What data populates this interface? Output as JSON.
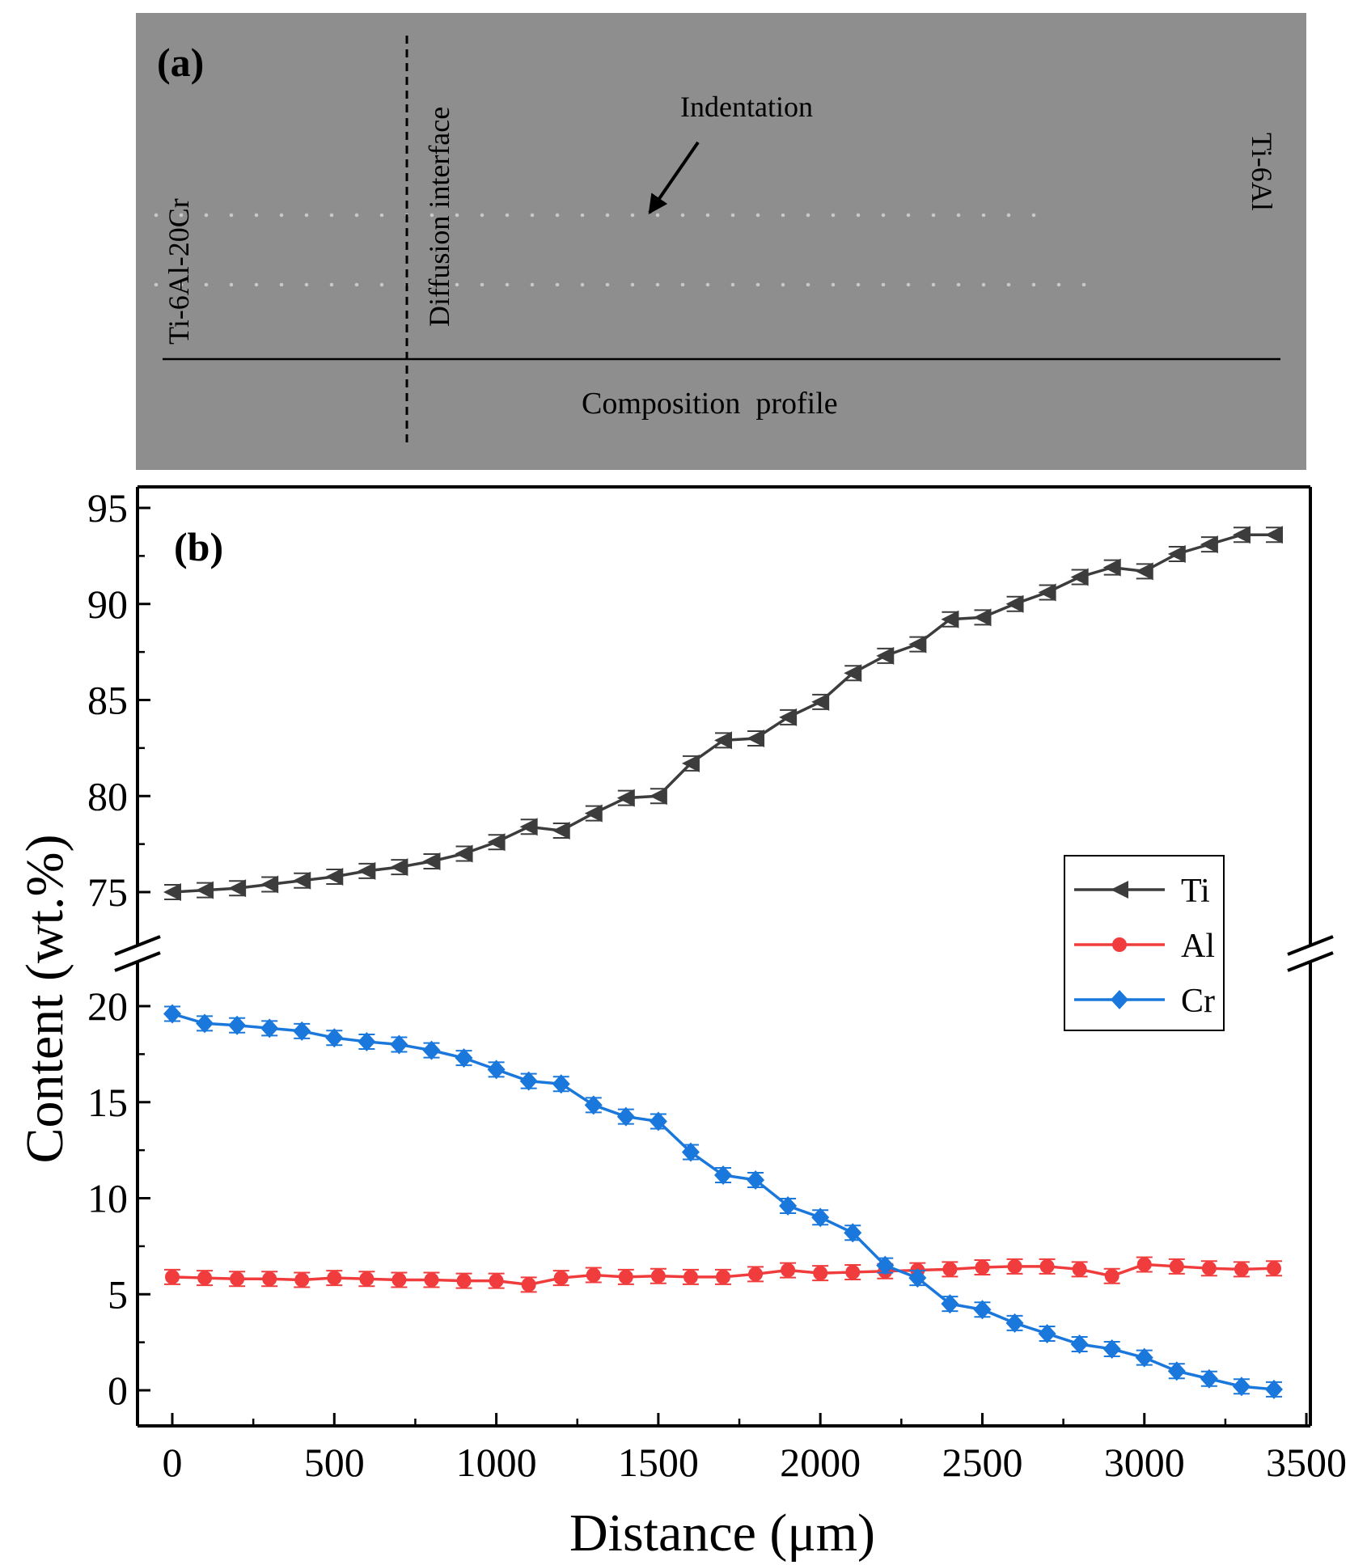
{
  "panel_a": {
    "panel_label": "(a)",
    "left_material": "Ti-6Al-20Cr",
    "right_material": "Ti-6Al",
    "interface_label": "Diffusion interface",
    "indentation_label": "Indentation",
    "profile_label": "Composition  profile",
    "colors": {
      "background": "#8e8e8e",
      "line": "#000000"
    }
  },
  "chart_data": {
    "type": "line",
    "panel_label": "(b)",
    "xlabel": "Distance (μm)",
    "ylabel": "Content (wt.%)",
    "xlim": [
      -100,
      3500
    ],
    "x_ticks": [
      "0",
      "500",
      "1000",
      "1500",
      "2000",
      "2500",
      "3000",
      "3500"
    ],
    "y_broken_axis": true,
    "y_upper_range": [
      72.5,
      95
    ],
    "y_upper_ticks": [
      "75",
      "80",
      "85",
      "90",
      "95"
    ],
    "y_lower_range": [
      -1,
      22
    ],
    "y_lower_ticks": [
      "0",
      "5",
      "10",
      "15",
      "20"
    ],
    "x": [
      0,
      100,
      200,
      300,
      400,
      500,
      600,
      700,
      800,
      900,
      1000,
      1100,
      1200,
      1300,
      1400,
      1500,
      1600,
      1700,
      1800,
      1900,
      2000,
      2100,
      2200,
      2300,
      2400,
      2500,
      2600,
      2700,
      2800,
      2900,
      3000,
      3100,
      3200,
      3300,
      3400
    ],
    "legend_position": "right",
    "series": [
      {
        "name": "Ti",
        "color": "#3c3c3c",
        "marker": "left-triangle",
        "axis": "upper",
        "values": [
          75.0,
          75.1,
          75.2,
          75.4,
          75.6,
          75.8,
          76.1,
          76.3,
          76.6,
          77.0,
          77.6,
          78.4,
          78.2,
          79.1,
          79.9,
          80.0,
          81.7,
          82.9,
          83.0,
          84.1,
          84.9,
          86.4,
          87.3,
          87.9,
          89.2,
          89.3,
          90.0,
          90.6,
          91.4,
          91.9,
          91.7,
          92.6,
          93.1,
          93.6,
          93.6
        ]
      },
      {
        "name": "Al",
        "color": "#f03c3c",
        "marker": "circle",
        "axis": "lower",
        "values": [
          5.9,
          5.85,
          5.8,
          5.8,
          5.75,
          5.85,
          5.8,
          5.75,
          5.75,
          5.7,
          5.7,
          5.5,
          5.85,
          6.0,
          5.9,
          5.95,
          5.9,
          5.9,
          6.05,
          6.25,
          6.1,
          6.15,
          6.2,
          6.25,
          6.3,
          6.4,
          6.45,
          6.45,
          6.3,
          5.95,
          6.55,
          6.45,
          6.35,
          6.3,
          6.35
        ]
      },
      {
        "name": "Cr",
        "color": "#1a78dc",
        "marker": "diamond",
        "axis": "lower",
        "values": [
          19.6,
          19.1,
          19.0,
          18.85,
          18.7,
          18.35,
          18.15,
          18.0,
          17.7,
          17.3,
          16.7,
          16.1,
          15.95,
          14.85,
          14.25,
          14.0,
          12.4,
          11.2,
          10.95,
          9.6,
          9.0,
          8.2,
          6.5,
          5.85,
          4.5,
          4.2,
          3.5,
          2.95,
          2.4,
          2.15,
          1.7,
          1.0,
          0.6,
          0.2,
          0.05
        ]
      }
    ]
  }
}
